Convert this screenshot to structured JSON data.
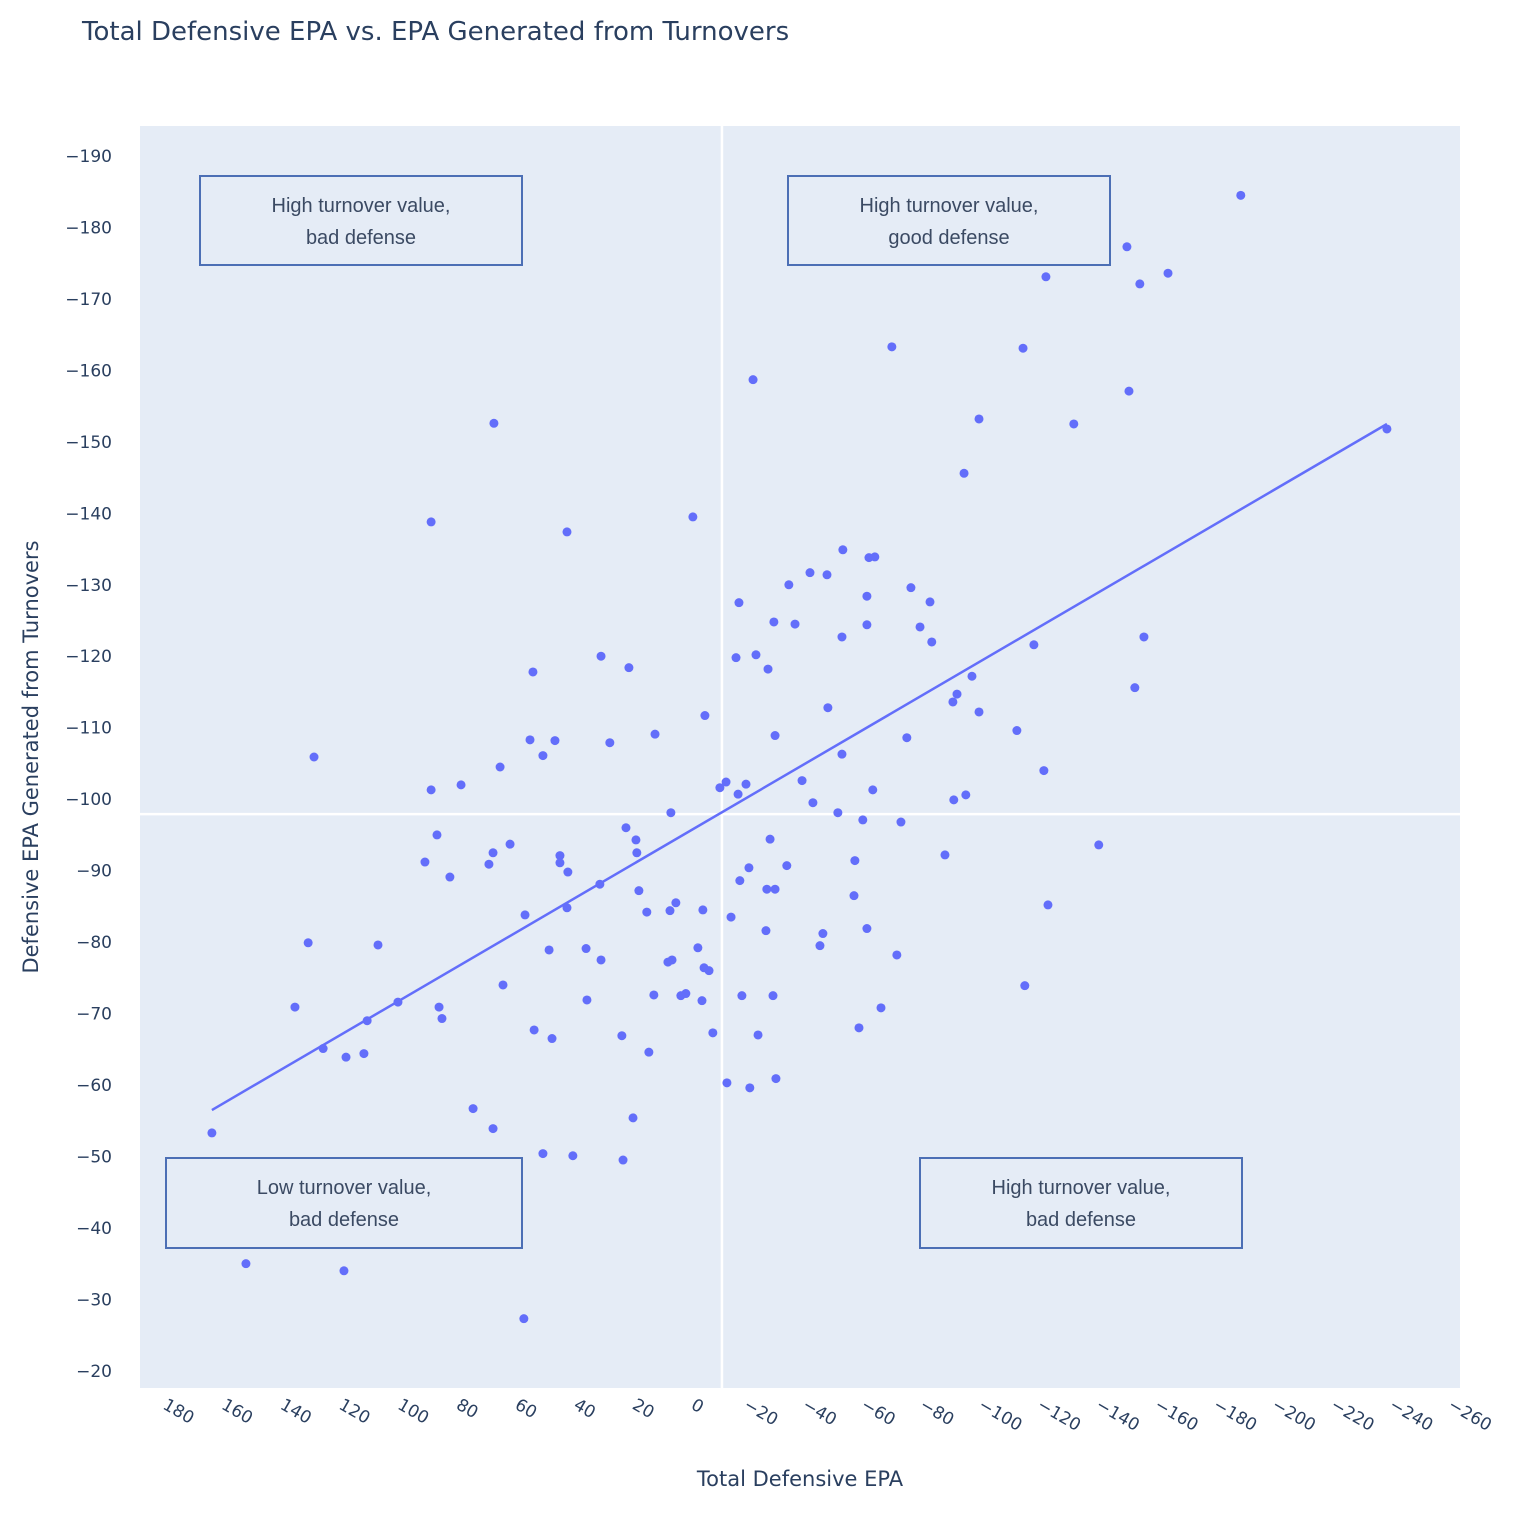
{
  "chart_data": {
    "type": "scatter",
    "title": "Total Defensive EPA vs. EPA Generated from Turnovers",
    "xlabel": "Total Defensive EPA",
    "ylabel": "Defensive EPA Generated from Turnovers",
    "xlim": [
      187.4,
      -262.4
    ],
    "ylim": [
      -17.6,
      -194.2
    ],
    "x_reversed": true,
    "y_reversed": true,
    "grid": false,
    "x_ticks": [
      180,
      160,
      140,
      120,
      100,
      80,
      60,
      40,
      20,
      0,
      -20,
      -40,
      -60,
      -80,
      -100,
      -120,
      -140,
      -160,
      -180,
      -200,
      -220,
      -240,
      -260
    ],
    "y_ticks": [
      -190,
      -180,
      -170,
      -160,
      -150,
      -140,
      -130,
      -120,
      -110,
      -100,
      -90,
      -80,
      -70,
      -60,
      -50,
      -40,
      -30,
      -20
    ],
    "marker_color": "#636efa",
    "reference_lines": {
      "x": -10.9,
      "y": -97.9,
      "color": "#ffffff"
    },
    "trendline": {
      "x": [
        162.9,
        -237.5
      ],
      "y": [
        -56.5,
        -152.5
      ],
      "color": "#636efa"
    },
    "annotations": [
      {
        "line1": "High turnover value,",
        "line2": "bad defense"
      },
      {
        "line1": "High turnover value,",
        "line2": "good defense"
      },
      {
        "line1": "Low turnover value,",
        "line2": "bad defense"
      },
      {
        "line1": "High turnover value,",
        "line2": "bad defense"
      }
    ],
    "series": [
      {
        "name": "teams",
        "x": [
          -187.7,
          -148.9,
          -121.3,
          -162.9,
          -153.3,
          -68.8,
          -113.5,
          -21.5,
          -149.6,
          66.8,
          -130.8,
          -98.5,
          -237.5,
          -93.4,
          88.2,
          -1.0,
          41.9,
          -52.1,
          -61.0,
          -63.0,
          -40.9,
          -46.7,
          -33.7,
          -75.3,
          -16.7,
          -60.3,
          -81.8,
          -28.6,
          -35.8,
          -60.3,
          -51.8,
          -78.4,
          -82.4,
          -154.7,
          -117.2,
          30.3,
          -22.5,
          -15.7,
          20.8,
          -26.6,
          53.5,
          -151.6,
          -96.1,
          -91.0,
          -89.6,
          -5.1,
          -47.0,
          -98.5,
          11.9,
          -111.4,
          -29.0,
          -73.9,
          54.5,
          46.0,
          27.3,
          128.1,
          50.1,
          -51.8,
          64.7,
          -120.6,
          -38.2,
          -12.3,
          -19.1,
          78.0,
          88.2,
          -10.2,
          -16.4,
          -62.3,
          -94.0,
          -89.9,
          -41.9,
          6.5,
          -50.4,
          -58.9,
          -71.9,
          21.8,
          86.2,
          -27.3,
          18.4,
          61.3,
          -139.3,
          67.1,
          18.1,
          44.3,
          -86.9,
          68.5,
          90.3,
          44.3,
          -33.0,
          -56.2,
          -20.1,
          41.6,
          81.8,
          -17.0,
          30.7,
          17.4,
          -26.2,
          -29.0,
          -55.9,
          -122.0,
          4.8,
          41.9,
          -4.4,
          6.8,
          14.7,
          56.2,
          -14.0,
          -25.9,
          -60.3,
          -45.3,
          130.1,
          106.3,
          -44.3,
          35.4,
          -2.7,
          48.0,
          -70.5,
          6.1,
          7.5,
          30.3,
          -4.8,
          -6.5,
          63.7,
          -114.1,
          1.4,
          3.1,
          12.3,
          -28.3,
          -17.7,
          99.5,
          35.1,
          -4.1,
          134.6,
          85.5,
          -65.1,
          84.5,
          110.0,
          -57.6,
          53.1,
          -7.8,
          23.2,
          -23.2,
          47.0,
          125.0,
          14.0,
          111.1,
          117.2,
          -12.6,
          -29.3,
          -20.4,
          73.9,
          19.4,
          67.1,
          162.9,
          50.1,
          39.9,
          22.8,
          151.3,
          117.9,
          56.6
        ],
        "y": [
          -184.5,
          -177.3,
          -173.1,
          -173.6,
          -172.1,
          -163.3,
          -163.1,
          -158.7,
          -157.1,
          -152.6,
          -152.5,
          -153.2,
          -151.8,
          -145.6,
          -138.8,
          -139.5,
          -137.4,
          -134.9,
          -133.8,
          -133.9,
          -131.7,
          -131.4,
          -130.0,
          -129.6,
          -127.5,
          -128.4,
          -127.6,
          -124.8,
          -124.5,
          -124.4,
          -122.7,
          -124.1,
          -122.0,
          -122.7,
          -121.6,
          -120.0,
          -120.2,
          -119.8,
          -118.4,
          -118.2,
          -117.8,
          -115.6,
          -117.2,
          -114.7,
          -113.6,
          -111.7,
          -112.8,
          -112.2,
          -109.1,
          -109.6,
          -108.9,
          -108.6,
          -108.3,
          -108.2,
          -107.9,
          -105.9,
          -106.1,
          -106.3,
          -104.5,
          -104.0,
          -102.6,
          -102.4,
          -102.1,
          -102.0,
          -101.3,
          -101.6,
          -100.7,
          -101.3,
          -100.6,
          -99.9,
          -99.5,
          -98.1,
          -98.1,
          -97.1,
          -96.8,
          -96.0,
          -95.0,
          -94.4,
          -94.3,
          -93.7,
          -93.6,
          -92.5,
          -92.5,
          -92.1,
          -92.2,
          -90.9,
          -91.2,
          -91.1,
          -90.7,
          -91.4,
          -90.4,
          -89.8,
          -89.1,
          -88.6,
          -88.1,
          -87.2,
          -87.4,
          -87.4,
          -86.5,
          -85.2,
          -85.5,
          -84.8,
          -84.5,
          -84.4,
          -84.2,
          -83.8,
          -83.5,
          -81.6,
          -81.9,
          -81.2,
          -79.9,
          -79.6,
          -79.5,
          -79.1,
          -79.2,
          -78.9,
          -78.2,
          -77.5,
          -77.2,
          -77.5,
          -76.4,
          -76.0,
          -74.0,
          -73.9,
          -72.8,
          -72.5,
          -72.6,
          -72.5,
          -72.5,
          -71.6,
          -71.9,
          -71.8,
          -70.9,
          -70.9,
          -70.8,
          -69.3,
          -69.0,
          -68.0,
          -67.7,
          -67.3,
          -66.9,
          -67.0,
          -66.5,
          -65.1,
          -64.6,
          -64.4,
          -63.9,
          -60.3,
          -60.9,
          -59.6,
          -56.7,
          -55.4,
          -53.9,
          -53.3,
          -50.4,
          -50.1,
          -49.5,
          -35.0,
          -34.0,
          -27.3
        ]
      }
    ]
  }
}
